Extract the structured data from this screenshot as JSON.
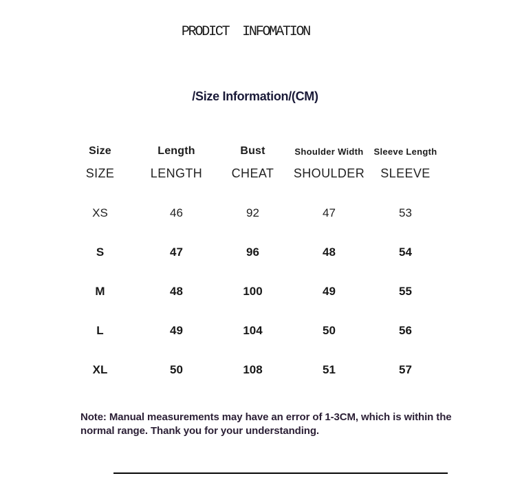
{
  "page": {
    "title": "PRODICT  INFOMATION",
    "subtitle": "/Size Information/(CM)"
  },
  "size_table": {
    "columns_primary": [
      "Size",
      "Length",
      "Bust",
      "Shoulder Width",
      "Sleeve Length"
    ],
    "columns_secondary": [
      "SIZE",
      "LENGTH",
      "CHEAT",
      "SHOULDER",
      "SLEEVE"
    ],
    "rows": [
      [
        "XS",
        "46",
        "92",
        "47",
        "53"
      ],
      [
        "S",
        "47",
        "96",
        "48",
        "54"
      ],
      [
        "M",
        "48",
        "100",
        "49",
        "55"
      ],
      [
        "L",
        "49",
        "104",
        "50",
        "56"
      ],
      [
        "XL",
        "50",
        "108",
        "51",
        "57"
      ]
    ]
  },
  "note": "Note: Manual measurements may have an error of 1-3CM, which is within the normal range. Thank you for your understanding.",
  "colors": {
    "background": "#ffffff",
    "title_text": "#181818",
    "subtitle_text": "#1a1a38",
    "table_text": "#181818",
    "note_text": "#2c2036",
    "divider": "#070707"
  }
}
